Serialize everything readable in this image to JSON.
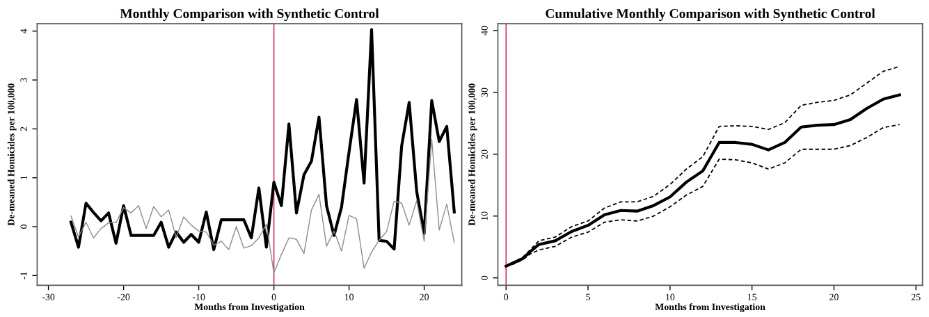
{
  "chart_data": [
    {
      "type": "line",
      "title": "Monthly Comparison with Synthetic Control",
      "xlabel": "Months from Investigation",
      "ylabel": "De-meaned Homicides per 100,000",
      "xlim": [
        -31.5,
        25
      ],
      "ylim": [
        -1.2,
        4.15
      ],
      "xticks": [
        -30,
        -20,
        -10,
        0,
        10,
        20
      ],
      "yticks": [
        -1,
        0,
        1,
        2,
        3,
        4
      ],
      "grid": false,
      "marker": "none",
      "x": [
        -27,
        -26,
        -25,
        -24,
        -23,
        -22,
        -21,
        -20,
        -19,
        -18,
        -17,
        -16,
        -15,
        -14,
        -13,
        -12,
        -11,
        -10,
        -9,
        -8,
        -7,
        -6,
        -5,
        -4,
        -3,
        -2,
        -1,
        0,
        1,
        2,
        3,
        4,
        5,
        6,
        7,
        8,
        9,
        10,
        11,
        12,
        13,
        14,
        15,
        16,
        17,
        18,
        19,
        20,
        21,
        22,
        23,
        24
      ],
      "series": [
        {
          "color": "#000000",
          "line_style": "solid",
          "values": [
            0.09,
            -0.42,
            0.48,
            0.29,
            0.12,
            0.28,
            -0.34,
            0.43,
            -0.18,
            -0.18,
            -0.18,
            -0.18,
            0.09,
            -0.42,
            -0.11,
            -0.32,
            -0.16,
            -0.32,
            0.3,
            -0.47,
            0.14,
            0.14,
            0.14,
            0.14,
            -0.23,
            0.79,
            -0.42,
            0.91,
            0.43,
            2.1,
            0.28,
            1.06,
            1.34,
            2.24,
            0.43,
            -0.18,
            0.4,
            1.53,
            2.6,
            0.89,
            4.03,
            -0.28,
            -0.3,
            -0.46,
            1.65,
            2.54,
            0.72,
            -0.14,
            2.58,
            1.74,
            2.05,
            0.3
          ]
        },
        {
          "color": "#8c8c8c",
          "line_style": "solid",
          "values": [
            0.22,
            -0.21,
            0.09,
            -0.23,
            -0.04,
            0.08,
            0.08,
            0.39,
            0.28,
            0.43,
            -0.04,
            0.41,
            0.2,
            0.34,
            -0.22,
            0.2,
            0.03,
            -0.09,
            -0.11,
            -0.38,
            -0.3,
            -0.47,
            0.0,
            -0.44,
            -0.39,
            -0.23,
            0.05,
            -0.95,
            -0.57,
            -0.23,
            -0.26,
            -0.55,
            0.34,
            0.66,
            -0.4,
            -0.09,
            -0.5,
            0.23,
            0.16,
            -0.85,
            -0.52,
            -0.28,
            -0.1,
            0.52,
            0.48,
            0.03,
            0.53,
            -0.3,
            1.79,
            -0.07,
            0.46,
            -0.33
          ]
        }
      ],
      "ref_lines": [
        {
          "axis": "x",
          "value": 0,
          "color": "#d6336c"
        }
      ]
    },
    {
      "type": "line",
      "title": "Cumulative Monthly Comparison with Synthetic Control",
      "xlabel": "Months from Investigation",
      "ylabel": "De-meaned Homicides per 100,000",
      "xlim": [
        -0.5,
        25.4
      ],
      "ylim": [
        -1.2,
        41.1
      ],
      "xticks": [
        0,
        5,
        10,
        15,
        20,
        25
      ],
      "yticks": [
        0,
        10,
        20,
        30,
        40
      ],
      "grid": false,
      "marker": "none",
      "x": [
        0,
        0.5,
        1,
        1.5,
        2,
        3,
        4,
        5,
        6,
        7,
        8,
        9,
        10,
        11,
        12,
        13,
        14,
        15,
        16,
        17,
        18,
        19,
        20,
        21,
        22,
        23,
        24
      ],
      "series": [
        {
          "color": "#000000",
          "line_style": "solid",
          "values": [
            1.9,
            2.5,
            3.1,
            4.3,
            5.4,
            6.0,
            7.5,
            8.5,
            10.2,
            10.9,
            10.8,
            11.7,
            13.1,
            15.5,
            17.3,
            21.9,
            21.9,
            21.6,
            20.7,
            21.9,
            24.4,
            24.7,
            24.8,
            25.6,
            27.4,
            28.9,
            29.6
          ]
        },
        {
          "color": "#000000",
          "line_style": "dashed",
          "values": [
            1.9,
            2.6,
            3.3,
            4.6,
            6.0,
            6.6,
            8.3,
            9.2,
            11.3,
            12.3,
            12.3,
            13.2,
            15.1,
            17.6,
            19.6,
            24.5,
            24.6,
            24.5,
            24.0,
            25.1,
            27.9,
            28.4,
            28.7,
            29.6,
            31.5,
            33.4,
            34.2
          ]
        },
        {
          "color": "#000000",
          "line_style": "dashed",
          "values": [
            1.9,
            2.3,
            2.9,
            3.9,
            4.5,
            5.1,
            6.6,
            7.4,
            9.0,
            9.4,
            9.2,
            10.0,
            11.5,
            13.4,
            14.8,
            19.2,
            19.1,
            18.6,
            17.6,
            18.6,
            20.8,
            20.8,
            20.8,
            21.4,
            22.7,
            24.3,
            24.8
          ]
        }
      ],
      "ref_lines": [
        {
          "axis": "x",
          "value": 0,
          "color": "#d6336c"
        }
      ]
    }
  ]
}
